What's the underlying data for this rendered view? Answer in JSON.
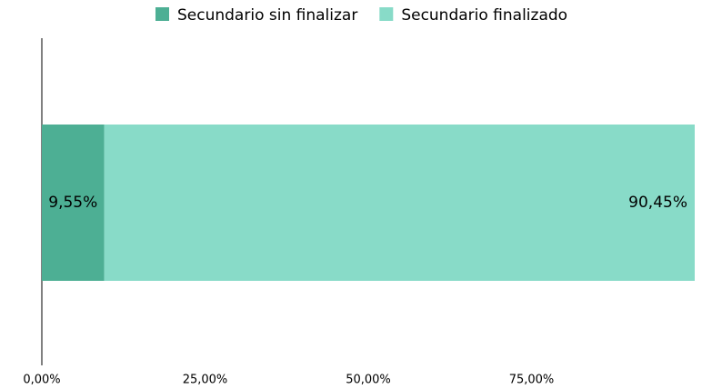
{
  "chart_data": {
    "type": "stacked-bar",
    "orientation": "horizontal",
    "categories": [
      null
    ],
    "series": [
      {
        "name": "Secundario sin finalizar",
        "color": "#4daf94",
        "values": [
          9.55
        ],
        "value_labels": [
          "9,55%"
        ]
      },
      {
        "name": "Secundario finalizado",
        "color": "#88dbc8",
        "values": [
          90.45
        ],
        "value_labels": [
          "90,45%"
        ]
      }
    ],
    "xlim": [
      0,
      100
    ],
    "xticks": [
      {
        "value": 0,
        "label": "0,00%"
      },
      {
        "value": 25,
        "label": "25,00%"
      },
      {
        "value": 50,
        "label": "50,00%"
      },
      {
        "value": 75,
        "label": "75,00%"
      }
    ],
    "legend": "top"
  }
}
